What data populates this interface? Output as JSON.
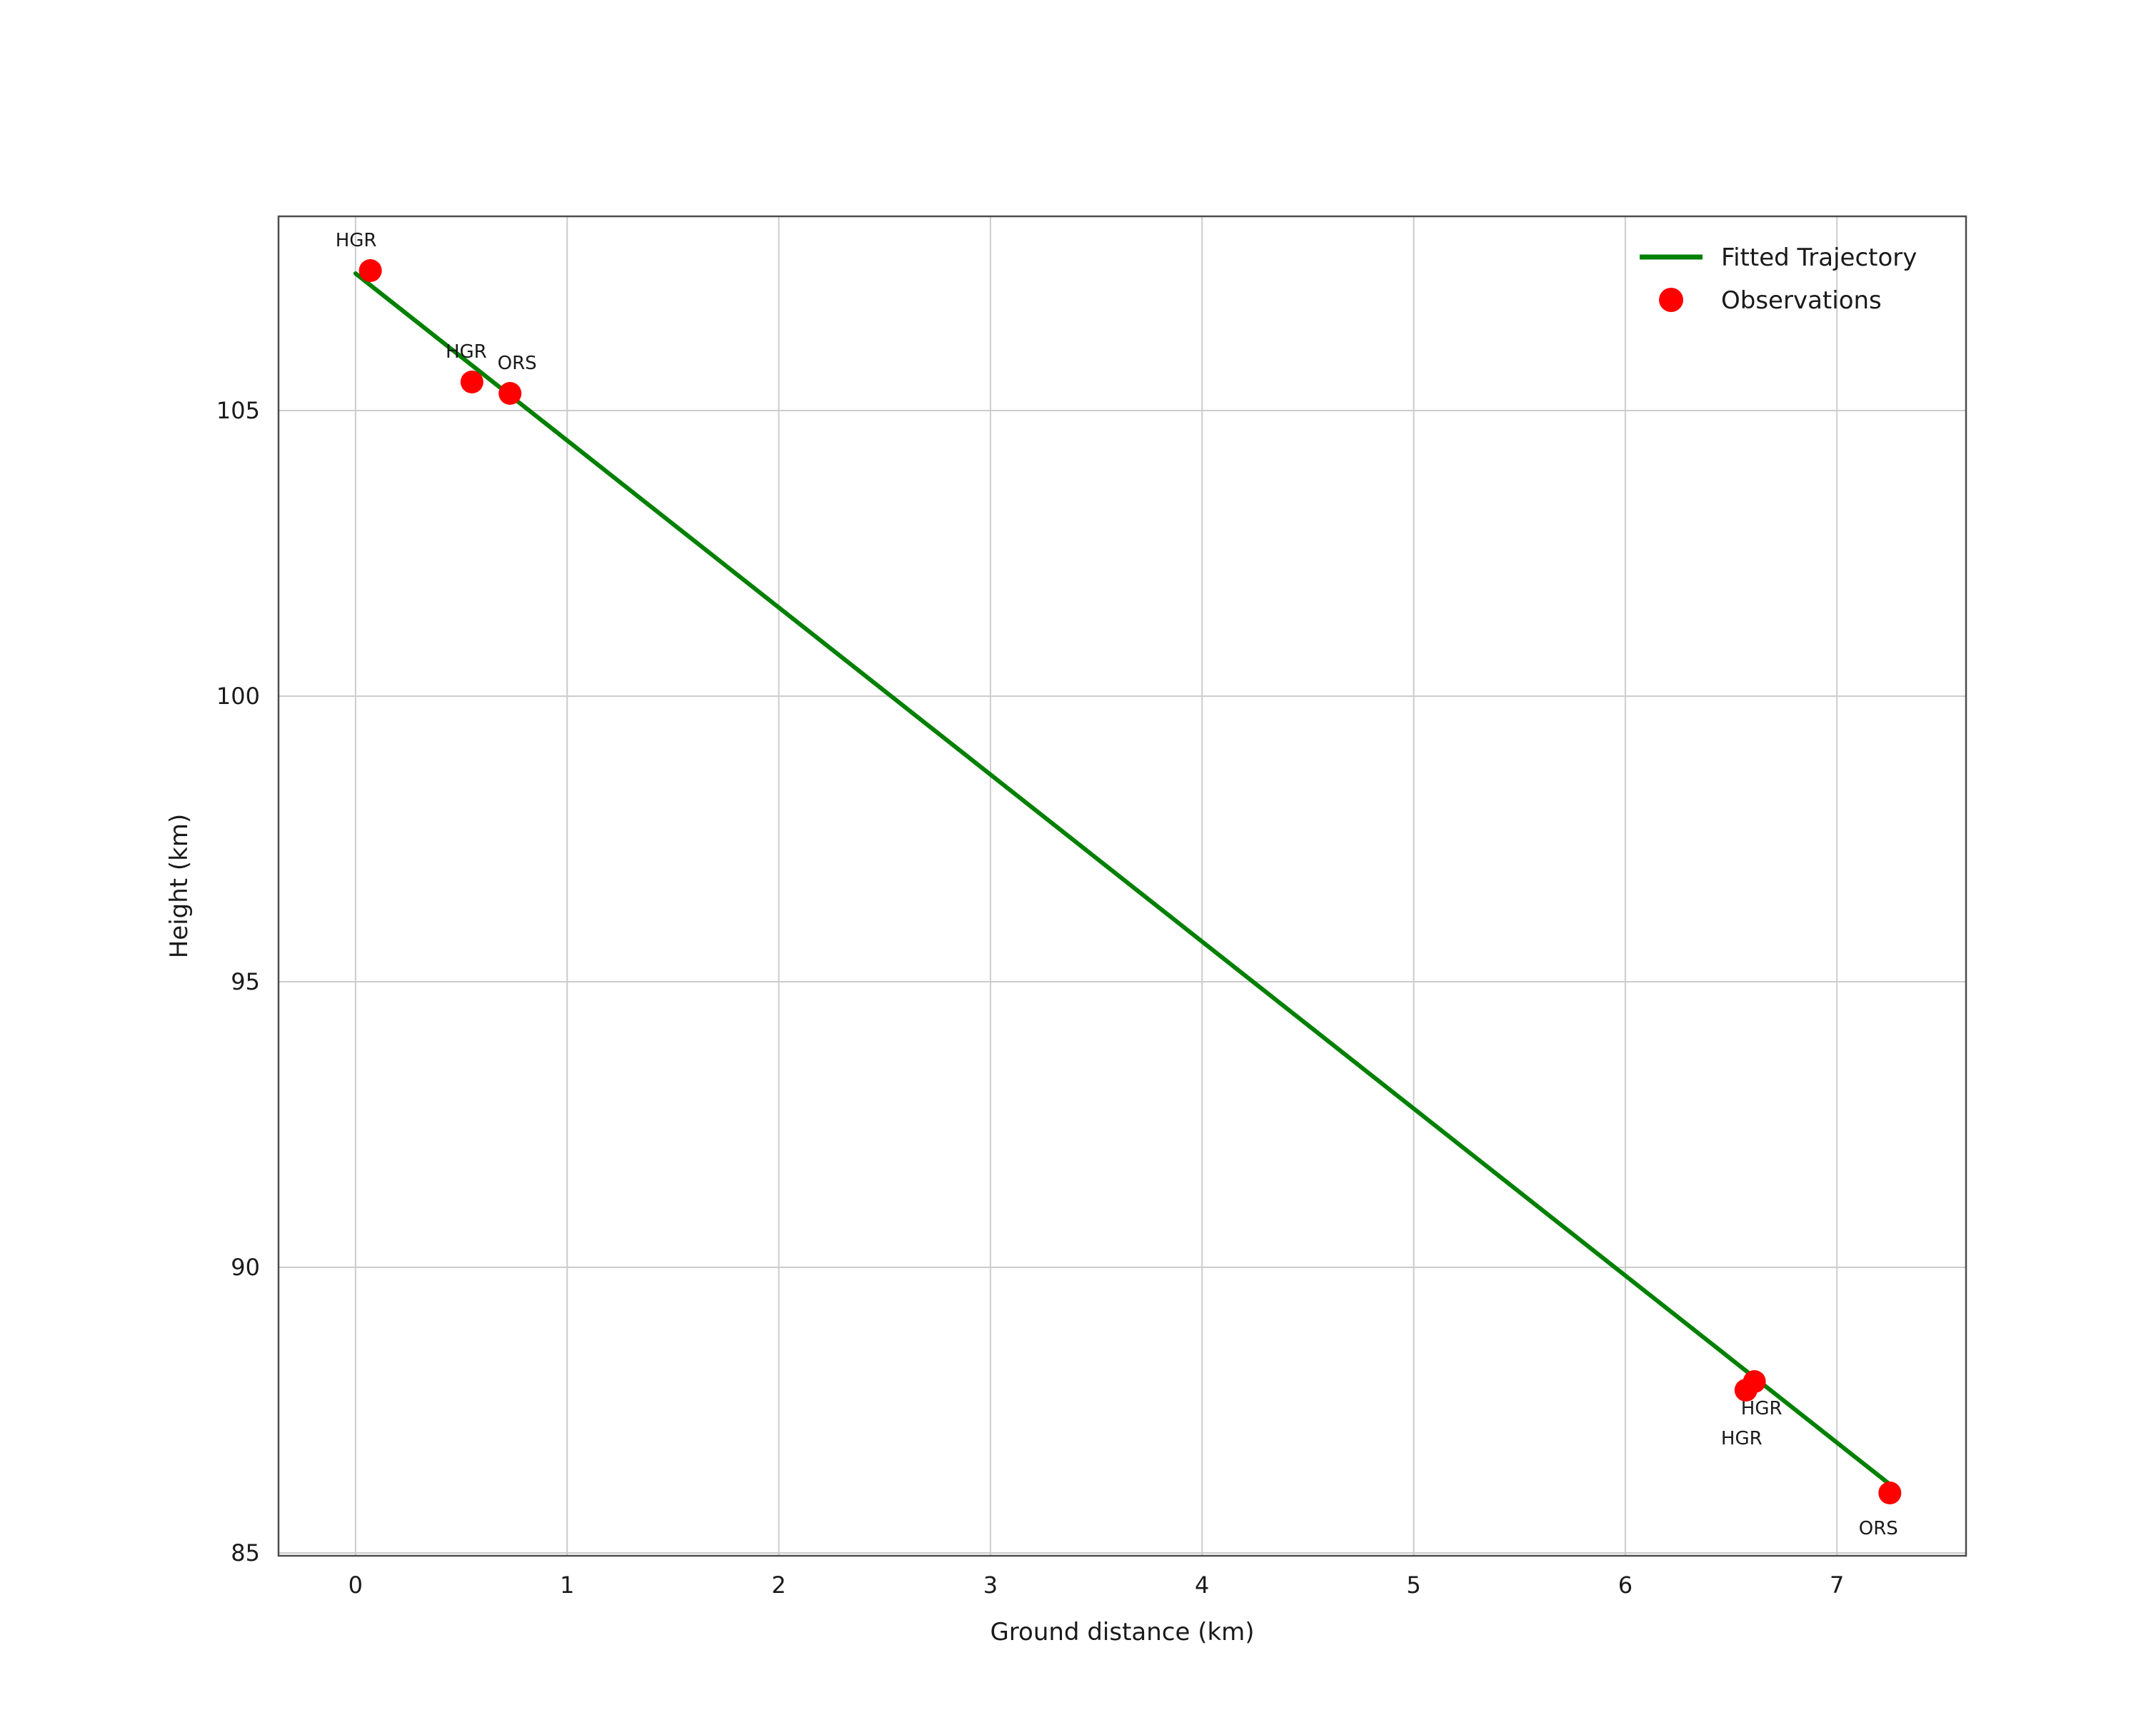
{
  "figure": {
    "background": "#ffffff"
  },
  "chart_data": {
    "type": "scatter",
    "title": "",
    "xlabel": "Ground distance (km)",
    "ylabel": "Height (km)",
    "xlim": [
      -0.364,
      7.61
    ],
    "ylim": [
      84.95,
      108.4
    ],
    "xticks": [
      0,
      1,
      2,
      3,
      4,
      5,
      6,
      7
    ],
    "yticks": [
      85,
      90,
      95,
      100,
      105
    ],
    "grid": true,
    "grid_color": "#cccccc",
    "spine_color": "#4d4d4d",
    "tick_label_color": "#1a1a1a",
    "annotation_color": "#1a1a1a",
    "legend": {
      "position": "upper right",
      "entries": [
        {
          "label": "Fitted Trajectory",
          "type": "line",
          "color": "#008000"
        },
        {
          "label": "Observations",
          "type": "marker",
          "color": "#ff0000"
        }
      ]
    },
    "series": [
      {
        "name": "Fitted Trajectory",
        "type": "line",
        "color": "#008000",
        "points": [
          [
            0,
            107.4
          ],
          [
            7.25,
            86.2
          ]
        ]
      },
      {
        "name": "Observations",
        "type": "scatter",
        "color": "#ff0000",
        "points": [
          {
            "x": 0.07,
            "y": 107.45,
            "label": "HGR",
            "label_dx": -20,
            "label_dy": -34
          },
          {
            "x": 0.55,
            "y": 105.5,
            "label": "HGR",
            "label_dx": -8,
            "label_dy": -34
          },
          {
            "x": 0.73,
            "y": 105.3,
            "label": "ORS",
            "label_dx": 10,
            "label_dy": -34
          },
          {
            "x": 6.61,
            "y": 88.0,
            "label": "HGR",
            "label_dx": 10,
            "label_dy": 46
          },
          {
            "x": 6.57,
            "y": 87.85,
            "label": "HGR",
            "label_dx": -6,
            "label_dy": 76
          },
          {
            "x": 7.25,
            "y": 86.05,
            "label": "ORS",
            "label_dx": -16,
            "label_dy": 58
          }
        ]
      }
    ]
  }
}
